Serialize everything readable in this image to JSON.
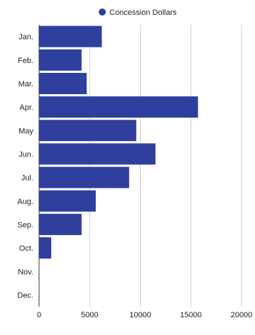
{
  "chart_data": {
    "type": "bar",
    "orientation": "horizontal",
    "categories": [
      "Jan.",
      "Feb.",
      "Mar.",
      "Apr.",
      "May",
      "Jun.",
      "Jul.",
      "Aug.",
      "Sep.",
      "Oct.",
      "Nov.",
      "Dec."
    ],
    "series": [
      {
        "name": "Concession Dollars",
        "color": "#2e3f9e",
        "values": [
          6200,
          4200,
          4700,
          15700,
          9600,
          11500,
          8900,
          5600,
          4200,
          1200,
          0,
          0
        ]
      }
    ],
    "xlim": [
      0,
      20000
    ],
    "xticks": [
      "0",
      "5000",
      "10000",
      "15000",
      "20000"
    ],
    "grid": true,
    "legend": "top-center"
  }
}
